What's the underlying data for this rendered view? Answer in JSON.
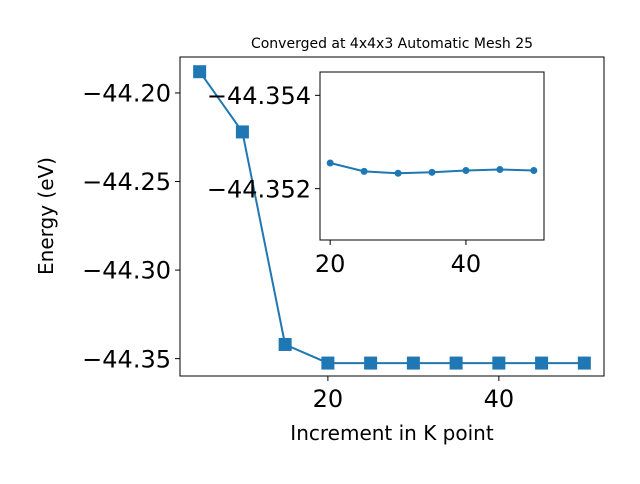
{
  "colors": {
    "series": "#1f77b4",
    "axes": "#000000",
    "background": "#ffffff"
  },
  "chart_data": [
    {
      "type": "line",
      "title": "Converged at 4x4x3 Automatic Mesh 25",
      "xlabel": "Increment in K point",
      "ylabel": "Energy (eV)",
      "xlim": [
        2.7,
        52.3
      ],
      "ylim": [
        -44.3598,
        -44.1797
      ],
      "xticks": [
        20,
        40
      ],
      "xtick_labels": [
        "20",
        "40"
      ],
      "yticks": [
        -44.2,
        -44.25,
        -44.3,
        -44.35
      ],
      "ytick_labels": [
        "−44.20",
        "−44.25",
        "−44.30",
        "−44.35"
      ],
      "marker": "square",
      "grid": false,
      "x": [
        5,
        10,
        15,
        20,
        25,
        30,
        35,
        40,
        45,
        50
      ],
      "y": [
        -44.188,
        -44.222,
        -44.342,
        -44.3525,
        -44.3525,
        -44.3525,
        -44.3525,
        -44.3525,
        -44.3525,
        -44.3525
      ]
    },
    {
      "type": "line",
      "title": "",
      "xlabel": "",
      "ylabel": "",
      "xlim": [
        18.5,
        51.5
      ],
      "ylim": [
        -44.3509,
        -44.3545
      ],
      "xticks": [
        20,
        40
      ],
      "xtick_labels": [
        "20",
        "40"
      ],
      "yticks": [
        -44.354,
        -44.352
      ],
      "ytick_labels": [
        "−44.354",
        "−44.352"
      ],
      "marker": "circle",
      "grid": false,
      "x": [
        20,
        25,
        30,
        35,
        40,
        45,
        50
      ],
      "y": [
        -44.35255,
        -44.35237,
        -44.35233,
        -44.35235,
        -44.35239,
        -44.35241,
        -44.35239
      ]
    }
  ]
}
